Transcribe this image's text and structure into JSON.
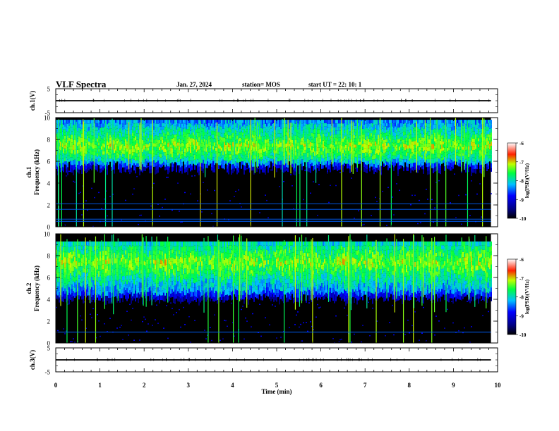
{
  "header": {
    "title": "VLF Spectra",
    "date": "Jan. 27, 2024",
    "station": "station= MOS",
    "start": "start  UT  =   22: 10: 1"
  },
  "chart_data": [
    {
      "type": "line",
      "panel": "ch1-voltage",
      "ylabel": "ch.1(V)",
      "ylim": [
        -5,
        5
      ],
      "yticks": [
        "5",
        "-5"
      ],
      "x": [
        0,
        9.85
      ],
      "series": [
        {
          "values": [
            0,
            0
          ]
        }
      ],
      "xlim": [
        0,
        10
      ]
    },
    {
      "type": "heatmap",
      "panel": "ch1-spectrogram",
      "ylabel": "ch.1\nFrequency (kHz)",
      "ylim": [
        0,
        10
      ],
      "yticks": [
        "0",
        "2",
        "4",
        "6",
        "8",
        "10"
      ],
      "xlim": [
        0,
        10
      ],
      "data_extent_min": 9.85,
      "band_khz": [
        6,
        9.8
      ],
      "colorbar": {
        "label": "log(PSD)(V²/Hz)",
        "range": [
          -10,
          -6
        ],
        "ticks": [
          "-6",
          "-7",
          "-8",
          "-9",
          "-10"
        ]
      },
      "lines_khz": [
        0.5,
        0.7,
        1.6,
        2.1
      ]
    },
    {
      "type": "heatmap",
      "panel": "ch2-spectrogram",
      "ylabel": "ch.2\nFrequency (kHz)",
      "ylim": [
        0,
        10
      ],
      "yticks": [
        "0",
        "2",
        "4",
        "6",
        "8",
        "10"
      ],
      "xlim": [
        0,
        10
      ],
      "data_extent_min": 9.85,
      "band_khz": [
        4.5,
        9.3
      ],
      "colorbar": {
        "label": "log(PSD)(V²/Hz)",
        "range": [
          -10,
          -6
        ],
        "ticks": [
          "-6",
          "-7",
          "-8",
          "-9",
          "-10"
        ]
      },
      "lines_khz": [
        1.0
      ]
    },
    {
      "type": "line",
      "panel": "ch3-voltage",
      "ylabel": "ch.3(V)",
      "ylim": [
        -5,
        5
      ],
      "yticks": [
        "5",
        "-5"
      ],
      "x": [
        0,
        9.85
      ],
      "series": [
        {
          "values": [
            0,
            0
          ]
        }
      ],
      "xlim": [
        0,
        10
      ],
      "xlabel": "Time  (min)",
      "xticks": [
        "0",
        "1",
        "2",
        "3",
        "4",
        "5",
        "6",
        "7",
        "8",
        "9",
        "10"
      ]
    }
  ]
}
